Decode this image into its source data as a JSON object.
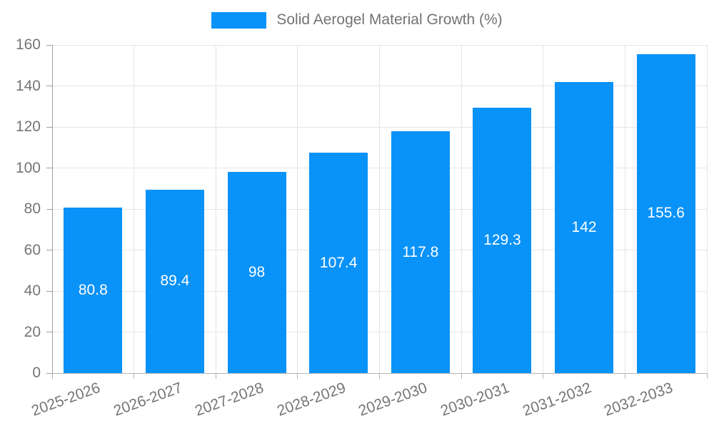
{
  "chart_data": {
    "type": "bar",
    "title": "Solid Aerogel Material Growth (%)",
    "categories": [
      "2025-2026",
      "2026-2027",
      "2027-2028",
      "2028-2029",
      "2029-2030",
      "2030-2031",
      "2031-2032",
      "2032-2033"
    ],
    "values": [
      80.8,
      89.4,
      98,
      107.4,
      117.8,
      129.3,
      142,
      155.6
    ],
    "xlabel": "",
    "ylabel": "",
    "ylim": [
      0,
      160
    ],
    "ytick_step": 20,
    "grid": true,
    "legend_position": "top-center",
    "bar_color": "#0992f8",
    "value_label_color": "#ffffff",
    "axis_label_color": "#757575",
    "gridline_color": "#e5e5e5",
    "background_color": "#ffffff"
  }
}
